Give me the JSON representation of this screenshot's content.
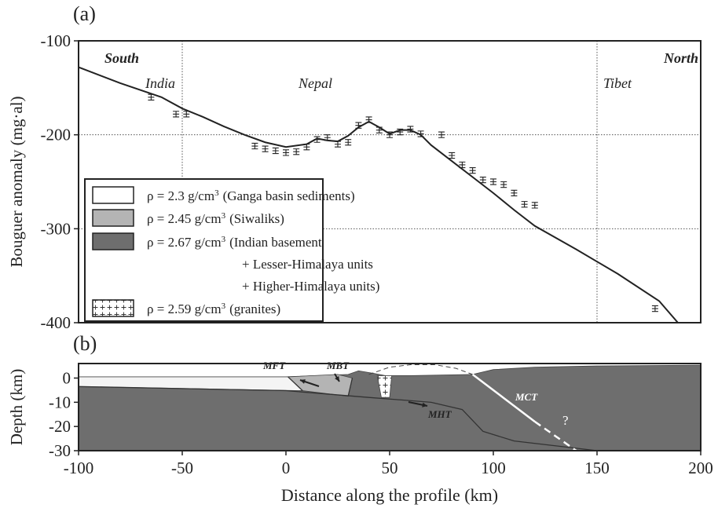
{
  "chart_data": [
    {
      "type": "line",
      "panel_label": "(a)",
      "y_label": "Bouguer anomaly (mg·al)",
      "xlim": [
        -100,
        200
      ],
      "ylim": [
        -400,
        -100
      ],
      "yticks": [
        -400,
        -300,
        -200,
        -100
      ],
      "grid_x": [
        -50,
        150
      ],
      "grid_y": [
        -300,
        -200
      ],
      "annotations": [
        "South",
        "North",
        "India",
        "Nepal",
        "Tibet"
      ],
      "series": [
        {
          "color": "#222222",
          "x": [
            -100,
            -80,
            -60,
            -50,
            -40,
            -30,
            -20,
            -10,
            0,
            10,
            15,
            20,
            25,
            30,
            35,
            40,
            45,
            50,
            55,
            60,
            65,
            70,
            80,
            90,
            100,
            110,
            120,
            140,
            160,
            180,
            189
          ],
          "values": [
            -128,
            -145,
            -160,
            -172,
            -181,
            -191,
            -200,
            -208,
            -213,
            -210,
            -204,
            -206,
            -207,
            -201,
            -192,
            -186,
            -192,
            -199,
            -195,
            -195,
            -200,
            -211,
            -228,
            -245,
            -262,
            -280,
            -297,
            -322,
            -348,
            -377,
            -400
          ]
        }
      ],
      "observations": {
        "color": "#222222",
        "x": [
          -65,
          -53,
          -48,
          -15,
          -10,
          -5,
          0,
          5,
          10,
          15,
          20,
          25,
          30,
          35,
          40,
          45,
          50,
          55,
          60,
          65,
          75,
          80,
          85,
          90,
          95,
          100,
          105,
          110,
          115,
          120,
          178
        ],
        "values": [
          -160,
          -178,
          -178,
          -212,
          -215,
          -217,
          -219,
          -218,
          -213,
          -205,
          -203,
          -210,
          -208,
          -190,
          -184,
          -195,
          -200,
          -197,
          -194,
          -199,
          -200,
          -222,
          -232,
          -238,
          -248,
          -250,
          -253,
          -262,
          -274,
          -275,
          -385
        ],
        "errors": [
          3,
          3,
          3,
          3,
          3,
          3,
          3,
          3,
          3,
          3,
          3,
          3,
          3,
          3,
          3,
          3,
          3,
          3,
          3,
          3,
          3,
          3,
          3,
          3,
          3,
          3,
          3,
          3,
          3,
          3,
          3
        ]
      },
      "legend": [
        {
          "label": "ρ = 2.3 g/cm",
          "sup": "3",
          "desc": [
            "(Ganga basin sediments)"
          ],
          "color": "#ffffff"
        },
        {
          "label": "ρ = 2.45 g/cm",
          "sup": "3",
          "desc": [
            "(Siwaliks)"
          ],
          "color": "#b4b4b4"
        },
        {
          "label": "ρ = 2.67 g/cm",
          "sup": "3",
          "desc": [
            "(Indian basement",
            "+ Lesser-Himalaya units",
            "+ Higher-Himalaya units)"
          ],
          "color": "#6e6e6e"
        },
        {
          "label": "ρ = 2.59 g/cm",
          "sup": "3",
          "desc": [
            "(granites)"
          ],
          "color": "pattern"
        }
      ]
    },
    {
      "type": "section",
      "panel_label": "(b)",
      "y_label": "Depth (km)",
      "x_label": "Distance along the profile (km)",
      "xlim": [
        -100,
        200
      ],
      "ylim": [
        -30,
        6
      ],
      "xticks": [
        -100,
        -50,
        0,
        50,
        100,
        150,
        200
      ],
      "yticks": [
        -30,
        -20,
        -10,
        0
      ],
      "units": [
        {
          "color": "#6e6e6e",
          "x": [
            -100,
            0,
            30,
            35,
            42,
            48,
            60,
            90,
            95,
            100,
            110,
            120,
            150,
            200,
            200,
            -100
          ],
          "y": [
            0.5,
            0.5,
            1.5,
            3,
            2,
            1,
            1,
            1.5,
            2.5,
            3.5,
            4,
            4.5,
            5,
            5.3,
            -30,
            -30
          ]
        },
        {
          "color": "#f4f4f4",
          "x": [
            -100,
            1,
            8,
            -100
          ],
          "y": [
            0.5,
            0.5,
            -5.2,
            -3.5
          ]
        },
        {
          "color": "#b4b4b4",
          "x": [
            1,
            25,
            32,
            30,
            8
          ],
          "y": [
            0.5,
            1.5,
            0,
            -7.5,
            -5.2
          ]
        },
        {
          "color": "pattern",
          "x": [
            44,
            51,
            50,
            46
          ],
          "y": [
            1,
            1,
            -8,
            -8
          ]
        }
      ],
      "faults": [
        {
          "name": "MFT",
          "color": "#333333",
          "x": [
            1,
            8
          ],
          "y": [
            0.5,
            -5.2
          ]
        },
        {
          "name": "MBT",
          "color": "#333333",
          "x": [
            32,
            30
          ],
          "y": [
            0,
            -7.5
          ]
        },
        {
          "name": "MHT",
          "color": "#333333",
          "x": [
            -100,
            0,
            40,
            70,
            85,
            95,
            110,
            140,
            150
          ],
          "y": [
            -3.5,
            -5.2,
            -8,
            -10,
            -13,
            -22,
            -26,
            -29,
            -30
          ]
        },
        {
          "name": "MCT",
          "color": "#ffffff",
          "x": [
            90,
            120
          ],
          "y": [
            1.5,
            -18
          ]
        }
      ],
      "uncertain": {
        "label": "?",
        "x": [
          120,
          140
        ],
        "y": [
          -18,
          -30
        ]
      },
      "eroded": {
        "x": [
          40,
          50,
          60,
          72,
          82,
          90
        ],
        "y": [
          1.5,
          4.5,
          5.5,
          5.5,
          4,
          1.5
        ]
      }
    }
  ]
}
